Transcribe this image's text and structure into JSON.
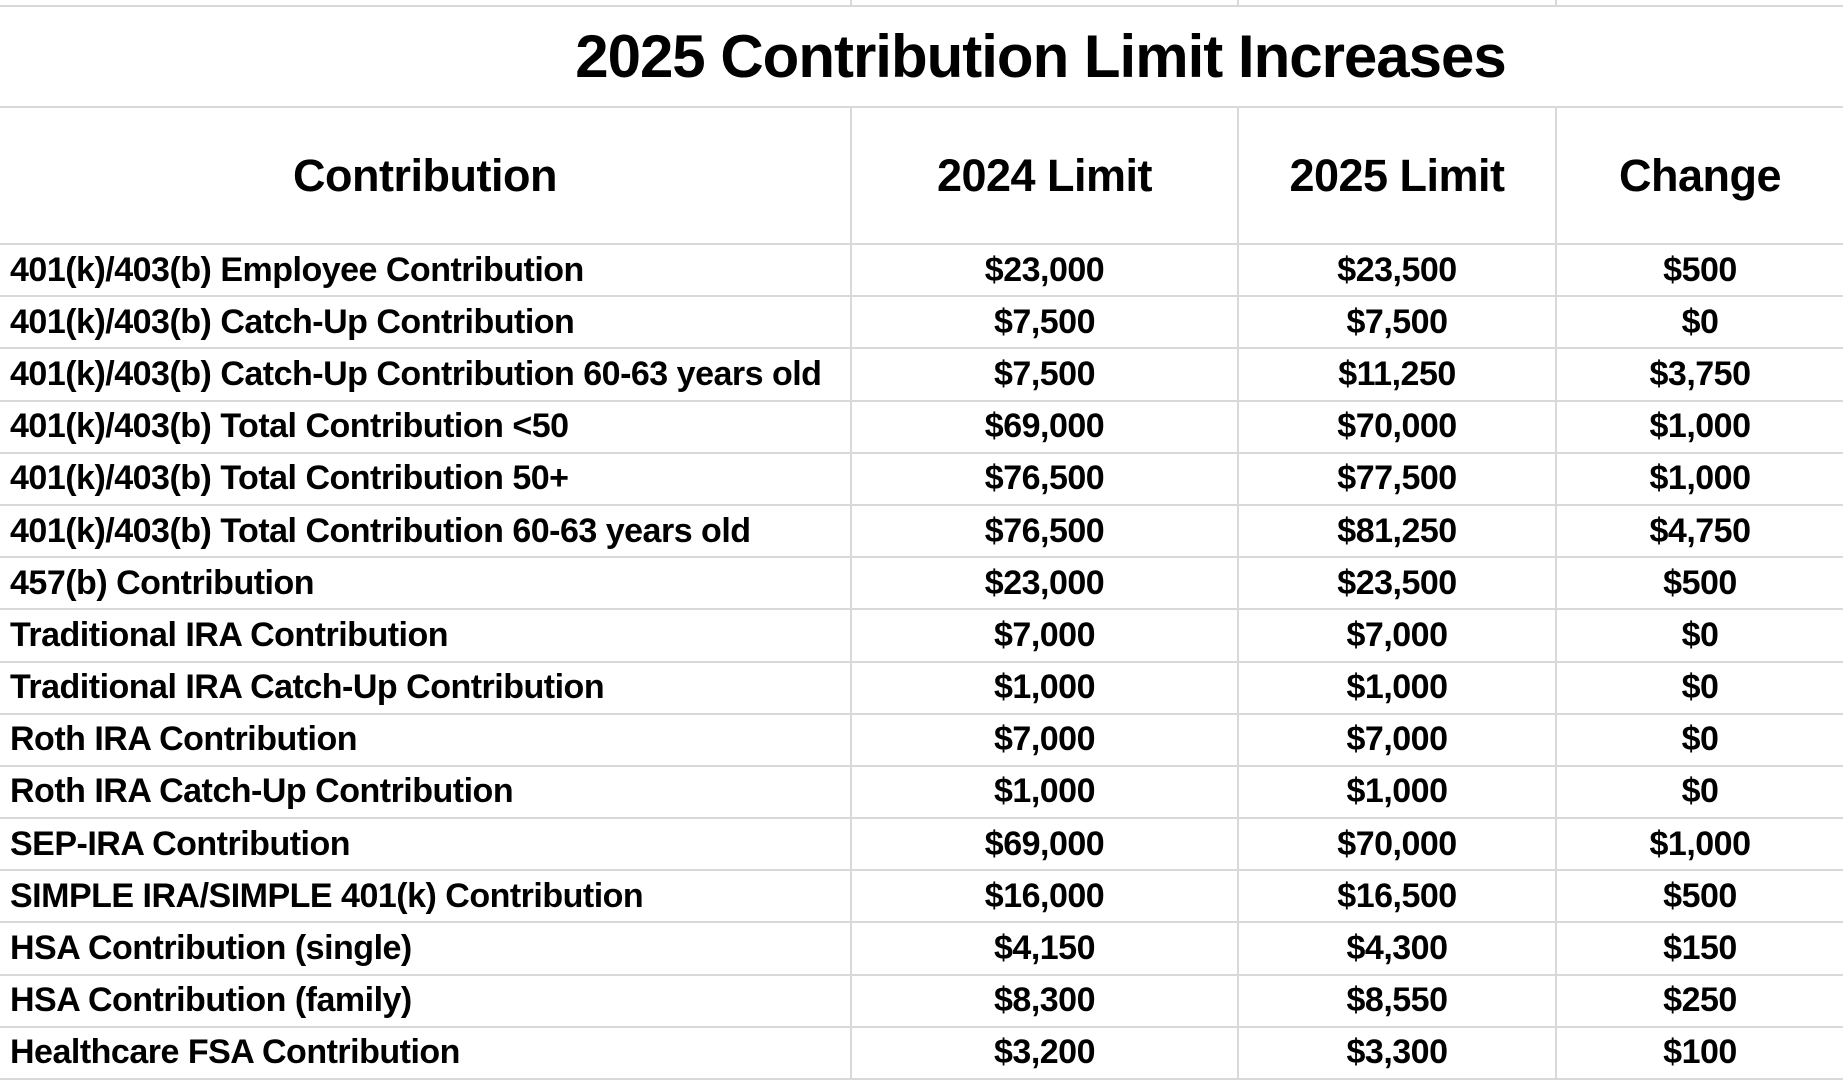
{
  "title": "2025 Contribution Limit Increases",
  "table": {
    "columns": [
      "Contribution",
      "2024 Limit",
      "2025 Limit",
      "Change"
    ],
    "rows": [
      {
        "label": "401(k)/403(b) Employee Contribution",
        "limit_2024": "$23,000",
        "limit_2025": "$23,500",
        "change": "$500"
      },
      {
        "label": "401(k)/403(b) Catch-Up Contribution",
        "limit_2024": "$7,500",
        "limit_2025": "$7,500",
        "change": "$0"
      },
      {
        "label": "401(k)/403(b) Catch-Up Contribution 60-63 years old",
        "limit_2024": "$7,500",
        "limit_2025": "$11,250",
        "change": "$3,750"
      },
      {
        "label": "401(k)/403(b) Total Contribution <50",
        "limit_2024": "$69,000",
        "limit_2025": "$70,000",
        "change": "$1,000"
      },
      {
        "label": "401(k)/403(b) Total Contribution 50+",
        "limit_2024": "$76,500",
        "limit_2025": "$77,500",
        "change": "$1,000"
      },
      {
        "label": "401(k)/403(b) Total Contribution 60-63 years old",
        "limit_2024": "$76,500",
        "limit_2025": "$81,250",
        "change": "$4,750"
      },
      {
        "label": "457(b) Contribution",
        "limit_2024": "$23,000",
        "limit_2025": "$23,500",
        "change": "$500"
      },
      {
        "label": "Traditional IRA Contribution",
        "limit_2024": "$7,000",
        "limit_2025": "$7,000",
        "change": "$0"
      },
      {
        "label": "Traditional IRA Catch-Up Contribution",
        "limit_2024": "$1,000",
        "limit_2025": "$1,000",
        "change": "$0"
      },
      {
        "label": "Roth IRA Contribution",
        "limit_2024": "$7,000",
        "limit_2025": "$7,000",
        "change": "$0"
      },
      {
        "label": "Roth IRA Catch-Up Contribution",
        "limit_2024": "$1,000",
        "limit_2025": "$1,000",
        "change": "$0"
      },
      {
        "label": "SEP-IRA Contribution",
        "limit_2024": "$69,000",
        "limit_2025": "$70,000",
        "change": "$1,000"
      },
      {
        "label": "SIMPLE IRA/SIMPLE 401(k) Contribution",
        "limit_2024": "$16,000",
        "limit_2025": "$16,500",
        "change": "$500"
      },
      {
        "label": "HSA Contribution (single)",
        "limit_2024": "$4,150",
        "limit_2025": "$4,300",
        "change": "$150"
      },
      {
        "label": "HSA Contribution (family)",
        "limit_2024": "$8,300",
        "limit_2025": "$8,550",
        "change": "$250"
      },
      {
        "label": "Healthcare FSA Contribution",
        "limit_2024": "$3,200",
        "limit_2025": "$3,300",
        "change": "$100"
      }
    ]
  },
  "colors": {
    "gridline": "#d9d9d9",
    "text": "#000000",
    "background": "#ffffff"
  }
}
